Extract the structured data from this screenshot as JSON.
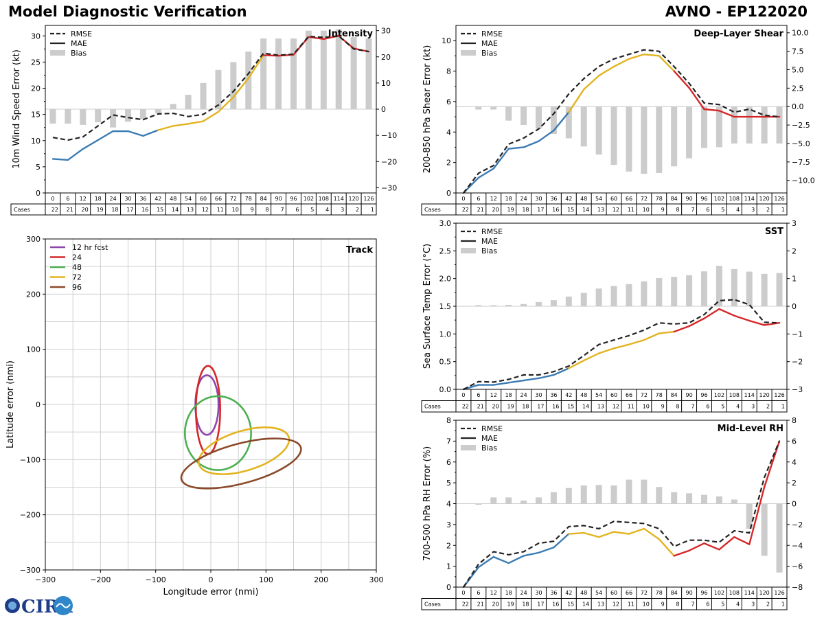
{
  "header": {
    "title_left": "Model Diagnostic Verification",
    "title_right": "AVNO - EP122020"
  },
  "logo_text": "CIRA",
  "colors": {
    "mae_seg": [
      "#3a7bb3",
      "#e3b31f",
      "#d62728"
    ],
    "rmse": "#222222",
    "bias": "#cccccc"
  },
  "forecast_hours": [
    "0",
    "6",
    "12",
    "18",
    "24",
    "30",
    "36",
    "42",
    "48",
    "54",
    "60",
    "66",
    "72",
    "78",
    "84",
    "90",
    "96",
    "102",
    "108",
    "114",
    "120",
    "126"
  ],
  "cases_label": "Cases",
  "cases": {
    "intensity": [
      "22",
      "21",
      "20",
      "19",
      "18",
      "17",
      "16",
      "15",
      "14",
      "13",
      "12",
      "11",
      "10",
      "9",
      "8",
      "7",
      "6",
      "5",
      "4",
      "3",
      "2",
      "1"
    ],
    "shear": [
      "22",
      "21",
      "20",
      "19",
      "18",
      "17",
      "16",
      "15",
      "14",
      "13",
      "12",
      "11",
      "10",
      "9",
      "8",
      "7",
      "6",
      "5",
      "4",
      "3",
      "2",
      "1"
    ],
    "sst": [
      "22",
      "21",
      "20",
      "19",
      "18",
      "17",
      "16",
      "15",
      "14",
      "13",
      "12",
      "11",
      "10",
      "9",
      "8",
      "7",
      "6",
      "5",
      "4",
      "3",
      "2",
      "1"
    ],
    "rh": [
      "22",
      "21",
      "20",
      "19",
      "18",
      "17",
      "16",
      "15",
      "14",
      "13",
      "12",
      "11",
      "10",
      "9",
      "8",
      "7",
      "6",
      "5",
      "4",
      "3",
      "2",
      "1"
    ]
  },
  "chart_data": [
    {
      "id": "intensity",
      "type": "line",
      "title": "Intensity",
      "ylabel": "10m Wind Speed Error (kt)",
      "ylim": [
        0,
        32
      ],
      "yticks": [
        0,
        5,
        10,
        15,
        20,
        25,
        30
      ],
      "y2lim": [
        -32,
        32
      ],
      "y2ticks": [
        -30,
        -20,
        -10,
        0,
        10,
        20,
        30
      ],
      "y2ticklabels": [
        "−30",
        "−20",
        "−10",
        "0",
        "10",
        "20",
        "30"
      ],
      "legend": [
        "RMSE",
        "MAE",
        "Bias"
      ],
      "mae": [
        6.5,
        6.3,
        8.4,
        10.1,
        11.8,
        11.8,
        10.9,
        12.0,
        12.8,
        13.2,
        13.7,
        15.5,
        18.3,
        21.9,
        26.3,
        26.2,
        26.4,
        29.8,
        29.4,
        30.0,
        27.6,
        27.0
      ],
      "rmse": [
        10.6,
        10.1,
        10.7,
        12.8,
        14.9,
        14.4,
        14.0,
        15.1,
        15.2,
        14.6,
        15.0,
        16.8,
        19.4,
        22.8,
        26.7,
        26.3,
        26.5,
        29.9,
        29.7,
        30.0,
        27.5,
        27.0
      ],
      "bias": [
        -5.5,
        -5.5,
        -6.0,
        -5.0,
        -7.0,
        -4.8,
        -3.8,
        -1.5,
        2.0,
        5.5,
        10.0,
        15.0,
        18.0,
        22.0,
        27.0,
        27.0,
        27.0,
        30.0,
        30.0,
        30.5,
        27.5,
        27.0
      ]
    },
    {
      "id": "shear",
      "type": "line",
      "title": "Deep-Layer Shear",
      "ylabel": "200-850 hPa Shear Error (kt)",
      "ylim": [
        0,
        11
      ],
      "yticks": [
        0,
        2,
        4,
        6,
        8,
        10
      ],
      "y2lim": [
        -11.7,
        11.0
      ],
      "y2ticks": [
        -10,
        -7.5,
        -5,
        -2.5,
        0,
        2.5,
        5,
        7.5,
        10
      ],
      "y2ticklabels": [
        "−10.0",
        "−7.5",
        "−5.0",
        "−2.5",
        "0.0",
        "2.5",
        "5.0",
        "7.5",
        "10.0"
      ],
      "legend": [
        "RMSE",
        "MAE",
        "Bias"
      ],
      "mae": [
        0.0,
        1.0,
        1.6,
        2.9,
        3.0,
        3.4,
        4.1,
        5.3,
        6.8,
        7.7,
        8.3,
        8.8,
        9.1,
        9.0,
        8.0,
        6.9,
        5.5,
        5.4,
        5.0,
        5.0,
        5.0,
        5.0
      ],
      "rmse": [
        0.0,
        1.3,
        1.8,
        3.2,
        3.6,
        4.2,
        5.2,
        6.5,
        7.5,
        8.3,
        8.8,
        9.1,
        9.4,
        9.3,
        8.3,
        7.2,
        5.9,
        5.8,
        5.3,
        5.5,
        5.1,
        5.0
      ],
      "bias": [
        0.0,
        -0.4,
        -0.4,
        -1.9,
        -2.5,
        -3.0,
        -3.7,
        -4.3,
        -5.4,
        -6.5,
        -7.9,
        -8.8,
        -9.1,
        -9.0,
        -8.1,
        -7.0,
        -5.6,
        -5.5,
        -5.0,
        -5.0,
        -5.0,
        -5.0
      ]
    },
    {
      "id": "sst",
      "type": "line",
      "title": "SST",
      "ylabel": "Sea Surface Temp Error (°C)",
      "ylim": [
        0,
        3.0
      ],
      "yticks": [
        0,
        0.5,
        1.0,
        1.5,
        2.0,
        2.5,
        3.0
      ],
      "yticklabels": [
        "0.0",
        "0.5",
        "1.0",
        "1.5",
        "2.0",
        "2.5",
        "3.0"
      ],
      "y2lim": [
        -3,
        3
      ],
      "y2ticks": [
        -3,
        -2,
        -1,
        0,
        1,
        2,
        3
      ],
      "y2ticklabels": [
        "−3",
        "−2",
        "−1",
        "0",
        "1",
        "2",
        "3"
      ],
      "legend": [
        "RMSE",
        "MAE",
        "Bias"
      ],
      "mae": [
        0.0,
        0.08,
        0.08,
        0.12,
        0.16,
        0.2,
        0.26,
        0.38,
        0.52,
        0.65,
        0.74,
        0.81,
        0.89,
        1.01,
        1.04,
        1.14,
        1.28,
        1.45,
        1.33,
        1.24,
        1.16,
        1.2
      ],
      "rmse": [
        0.0,
        0.14,
        0.13,
        0.18,
        0.26,
        0.26,
        0.32,
        0.42,
        0.61,
        0.81,
        0.89,
        0.97,
        1.07,
        1.2,
        1.18,
        1.2,
        1.35,
        1.6,
        1.62,
        1.53,
        1.21,
        1.2
      ],
      "bias": [
        0.0,
        0.04,
        0.04,
        0.05,
        0.08,
        0.15,
        0.22,
        0.35,
        0.48,
        0.64,
        0.73,
        0.8,
        0.9,
        1.02,
        1.06,
        1.12,
        1.26,
        1.46,
        1.34,
        1.25,
        1.17,
        1.2
      ]
    },
    {
      "id": "rh",
      "type": "line",
      "title": "Mid-Level RH",
      "ylabel": "700-500 hPa RH Error (%)",
      "ylim": [
        0,
        8
      ],
      "yticks": [
        0,
        1,
        2,
        3,
        4,
        5,
        6,
        7,
        8
      ],
      "y2lim": [
        -8,
        8
      ],
      "y2ticks": [
        -8,
        -6,
        -4,
        -2,
        0,
        2,
        4,
        6,
        8
      ],
      "y2ticklabels": [
        "−8",
        "−6",
        "−4",
        "−2",
        "0",
        "2",
        "4",
        "6",
        "8"
      ],
      "legend": [
        "RMSE",
        "MAE",
        "Bias"
      ],
      "mae": [
        0.0,
        0.95,
        1.45,
        1.15,
        1.5,
        1.65,
        1.9,
        2.55,
        2.6,
        2.4,
        2.65,
        2.55,
        2.8,
        2.3,
        1.5,
        1.75,
        2.1,
        1.8,
        2.4,
        2.05,
        4.8,
        7.0
      ],
      "rmse": [
        0.0,
        1.1,
        1.7,
        1.55,
        1.7,
        2.1,
        2.2,
        2.9,
        2.95,
        2.8,
        3.15,
        3.1,
        3.05,
        2.8,
        1.95,
        2.25,
        2.25,
        2.15,
        2.7,
        2.6,
        5.25,
        7.0
      ],
      "bias": [
        0.0,
        -0.1,
        0.6,
        0.6,
        0.3,
        0.6,
        1.1,
        1.5,
        1.75,
        1.8,
        1.75,
        2.3,
        2.3,
        1.6,
        1.1,
        1.0,
        0.85,
        0.7,
        0.4,
        -2.4,
        -5.0,
        -6.6
      ]
    },
    {
      "id": "track",
      "type": "scatter",
      "title": "Track",
      "xlabel": "Longitude error (nmi)",
      "ylabel": "Latitude error (nmi)",
      "xlim": [
        -300,
        300
      ],
      "ylim": [
        -300,
        300
      ],
      "xticks": [
        -300,
        -200,
        -100,
        0,
        100,
        200,
        300
      ],
      "xticklabels": [
        "−300",
        "−200",
        "−100",
        "0",
        "100",
        "200",
        "300"
      ],
      "yticks": [
        -300,
        -200,
        -100,
        0,
        100,
        200,
        300
      ],
      "yticklabels": [
        "−300",
        "−200",
        "−100",
        "0",
        "100",
        "200",
        "300"
      ],
      "grid": true,
      "series": [
        {
          "name": "12 hr fcst",
          "color": "#8e44ad",
          "cx": -7,
          "cy": -1,
          "rx": 21,
          "ry": 54,
          "rot": 0
        },
        {
          "name": "24",
          "color": "#d62728",
          "cx": -5,
          "cy": -10,
          "rx": 22,
          "ry": 80,
          "rot": 0
        },
        {
          "name": "48",
          "color": "#4caf50",
          "cx": 13,
          "cy": -52,
          "rx": 60,
          "ry": 67,
          "rot": 0
        },
        {
          "name": "72",
          "color": "#e3b31f",
          "cx": 60,
          "cy": -84,
          "rx": 85,
          "ry": 36,
          "rot": -17
        },
        {
          "name": "96",
          "color": "#8b4a2b",
          "cx": 55,
          "cy": -107,
          "rx": 112,
          "ry": 36,
          "rot": -15
        }
      ]
    }
  ]
}
